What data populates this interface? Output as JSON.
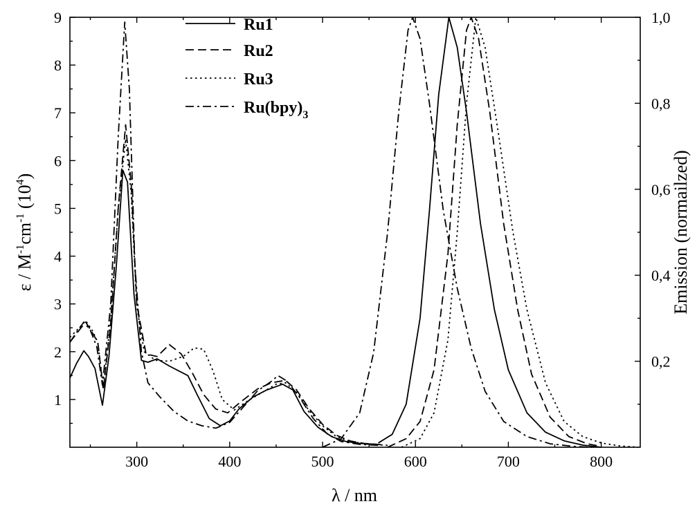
{
  "chart_data": {
    "type": "line",
    "xlabel": "λ / nm",
    "ylabel": "ε / M-1cm-1 (104)",
    "ylabel_parts": {
      "a": "ε / M",
      "sup1": "-1",
      "b": "cm",
      "sup2": "-1",
      "c": " (10",
      "sup3": "4",
      "d": ")"
    },
    "y2label": "Emission (normailzed)",
    "xlim": [
      228,
      842
    ],
    "ylim": [
      0,
      9
    ],
    "y2lim": [
      0,
      1.0
    ],
    "x_ticks": [
      "300",
      "400",
      "500",
      "600",
      "700",
      "800"
    ],
    "y_ticks": [
      "1",
      "2",
      "3",
      "4",
      "5",
      "6",
      "7",
      "8",
      "9"
    ],
    "y2_ticks": [
      "0,2",
      "0,4",
      "0,6",
      "0,8",
      "1,0"
    ],
    "legend_position": "top-center",
    "series": [
      {
        "name": "Ru1",
        "style": "solid",
        "absorption": [
          [
            228,
            1.45
          ],
          [
            235,
            1.75
          ],
          [
            243,
            2.02
          ],
          [
            248,
            1.9
          ],
          [
            255,
            1.65
          ],
          [
            263,
            0.88
          ],
          [
            270,
            1.9
          ],
          [
            278,
            3.8
          ],
          [
            285,
            5.8
          ],
          [
            290,
            5.55
          ],
          [
            297,
            3.2
          ],
          [
            305,
            1.82
          ],
          [
            312,
            1.78
          ],
          [
            322,
            1.85
          ],
          [
            335,
            1.7
          ],
          [
            355,
            1.5
          ],
          [
            365,
            1.1
          ],
          [
            378,
            0.6
          ],
          [
            390,
            0.45
          ],
          [
            400,
            0.55
          ],
          [
            410,
            0.8
          ],
          [
            425,
            1.05
          ],
          [
            440,
            1.2
          ],
          [
            457,
            1.32
          ],
          [
            468,
            1.2
          ],
          [
            480,
            0.75
          ],
          [
            495,
            0.42
          ],
          [
            510,
            0.22
          ],
          [
            525,
            0.12
          ],
          [
            540,
            0.08
          ],
          [
            560,
            0.06
          ]
        ],
        "emission": [
          [
            560,
            0.01
          ],
          [
            575,
            0.03
          ],
          [
            590,
            0.1
          ],
          [
            605,
            0.3
          ],
          [
            615,
            0.55
          ],
          [
            625,
            0.82
          ],
          [
            636,
            1.0
          ],
          [
            645,
            0.93
          ],
          [
            655,
            0.78
          ],
          [
            670,
            0.52
          ],
          [
            685,
            0.32
          ],
          [
            700,
            0.18
          ],
          [
            720,
            0.08
          ],
          [
            740,
            0.035
          ],
          [
            760,
            0.015
          ],
          [
            780,
            0.005
          ],
          [
            800,
            0.0
          ]
        ]
      },
      {
        "name": "Ru2",
        "style": "dashed",
        "absorption": [
          [
            228,
            2.2
          ],
          [
            238,
            2.45
          ],
          [
            245,
            2.62
          ],
          [
            252,
            2.4
          ],
          [
            258,
            2.2
          ],
          [
            264,
            1.2
          ],
          [
            272,
            2.6
          ],
          [
            280,
            5.0
          ],
          [
            288,
            6.75
          ],
          [
            294,
            5.5
          ],
          [
            300,
            3.0
          ],
          [
            310,
            1.95
          ],
          [
            322,
            1.9
          ],
          [
            335,
            2.15
          ],
          [
            348,
            1.95
          ],
          [
            360,
            1.55
          ],
          [
            372,
            1.1
          ],
          [
            385,
            0.8
          ],
          [
            398,
            0.72
          ],
          [
            412,
            0.95
          ],
          [
            430,
            1.22
          ],
          [
            445,
            1.35
          ],
          [
            460,
            1.4
          ],
          [
            472,
            1.2
          ],
          [
            485,
            0.82
          ],
          [
            500,
            0.48
          ],
          [
            515,
            0.25
          ],
          [
            530,
            0.13
          ],
          [
            545,
            0.08
          ],
          [
            565,
            0.05
          ]
        ],
        "emission": [
          [
            570,
            0.0
          ],
          [
            590,
            0.02
          ],
          [
            605,
            0.06
          ],
          [
            620,
            0.18
          ],
          [
            635,
            0.45
          ],
          [
            645,
            0.75
          ],
          [
            655,
            0.97
          ],
          [
            660,
            1.0
          ],
          [
            668,
            0.95
          ],
          [
            680,
            0.78
          ],
          [
            695,
            0.52
          ],
          [
            710,
            0.32
          ],
          [
            725,
            0.17
          ],
          [
            745,
            0.07
          ],
          [
            765,
            0.025
          ],
          [
            785,
            0.008
          ],
          [
            800,
            0.002
          ]
        ]
      },
      {
        "name": "Ru3",
        "style": "dotted",
        "absorption": [
          [
            228,
            2.3
          ],
          [
            238,
            2.5
          ],
          [
            245,
            2.65
          ],
          [
            252,
            2.45
          ],
          [
            258,
            2.2
          ],
          [
            264,
            1.25
          ],
          [
            272,
            2.7
          ],
          [
            280,
            5.0
          ],
          [
            288,
            6.45
          ],
          [
            294,
            5.3
          ],
          [
            300,
            2.95
          ],
          [
            308,
            2.0
          ],
          [
            320,
            1.82
          ],
          [
            335,
            1.8
          ],
          [
            350,
            1.9
          ],
          [
            362,
            2.08
          ],
          [
            372,
            2.05
          ],
          [
            382,
            1.6
          ],
          [
            392,
            1.0
          ],
          [
            405,
            0.78
          ],
          [
            420,
            0.98
          ],
          [
            438,
            1.18
          ],
          [
            450,
            1.32
          ],
          [
            460,
            1.35
          ],
          [
            472,
            1.15
          ],
          [
            485,
            0.78
          ],
          [
            500,
            0.45
          ],
          [
            515,
            0.22
          ],
          [
            530,
            0.12
          ],
          [
            550,
            0.06
          ],
          [
            570,
            0.04
          ]
        ],
        "emission": [
          [
            585,
            0.0
          ],
          [
            605,
            0.02
          ],
          [
            620,
            0.08
          ],
          [
            635,
            0.25
          ],
          [
            645,
            0.5
          ],
          [
            655,
            0.8
          ],
          [
            665,
            1.0
          ],
          [
            675,
            0.93
          ],
          [
            690,
            0.72
          ],
          [
            705,
            0.5
          ],
          [
            720,
            0.32
          ],
          [
            740,
            0.15
          ],
          [
            760,
            0.06
          ],
          [
            780,
            0.025
          ],
          [
            800,
            0.01
          ],
          [
            820,
            0.003
          ],
          [
            840,
            0.0
          ]
        ]
      },
      {
        "name": "Ru(bpy)3",
        "style": "dashdot",
        "absorption": [
          [
            228,
            2.2
          ],
          [
            235,
            2.4
          ],
          [
            243,
            2.62
          ],
          [
            250,
            2.45
          ],
          [
            257,
            2.1
          ],
          [
            263,
            1.3
          ],
          [
            272,
            3.0
          ],
          [
            280,
            6.5
          ],
          [
            287,
            8.9
          ],
          [
            292,
            7.5
          ],
          [
            298,
            3.8
          ],
          [
            305,
            2.0
          ],
          [
            312,
            1.35
          ],
          [
            325,
            1.05
          ],
          [
            340,
            0.75
          ],
          [
            355,
            0.55
          ],
          [
            370,
            0.45
          ],
          [
            385,
            0.4
          ],
          [
            400,
            0.52
          ],
          [
            415,
            0.85
          ],
          [
            430,
            1.18
          ],
          [
            445,
            1.38
          ],
          [
            452,
            1.5
          ],
          [
            462,
            1.38
          ],
          [
            475,
            1.05
          ],
          [
            490,
            0.6
          ],
          [
            505,
            0.28
          ],
          [
            520,
            0.12
          ],
          [
            540,
            0.06
          ],
          [
            560,
            0.04
          ]
        ],
        "emission": [
          [
            500,
            0.0
          ],
          [
            520,
            0.02
          ],
          [
            540,
            0.08
          ],
          [
            555,
            0.22
          ],
          [
            570,
            0.5
          ],
          [
            582,
            0.78
          ],
          [
            592,
            0.97
          ],
          [
            597,
            1.0
          ],
          [
            605,
            0.95
          ],
          [
            615,
            0.8
          ],
          [
            630,
            0.55
          ],
          [
            645,
            0.37
          ],
          [
            660,
            0.23
          ],
          [
            675,
            0.13
          ],
          [
            695,
            0.06
          ],
          [
            720,
            0.025
          ],
          [
            745,
            0.008
          ],
          [
            770,
            0.002
          ],
          [
            790,
            0.0
          ]
        ]
      }
    ]
  }
}
